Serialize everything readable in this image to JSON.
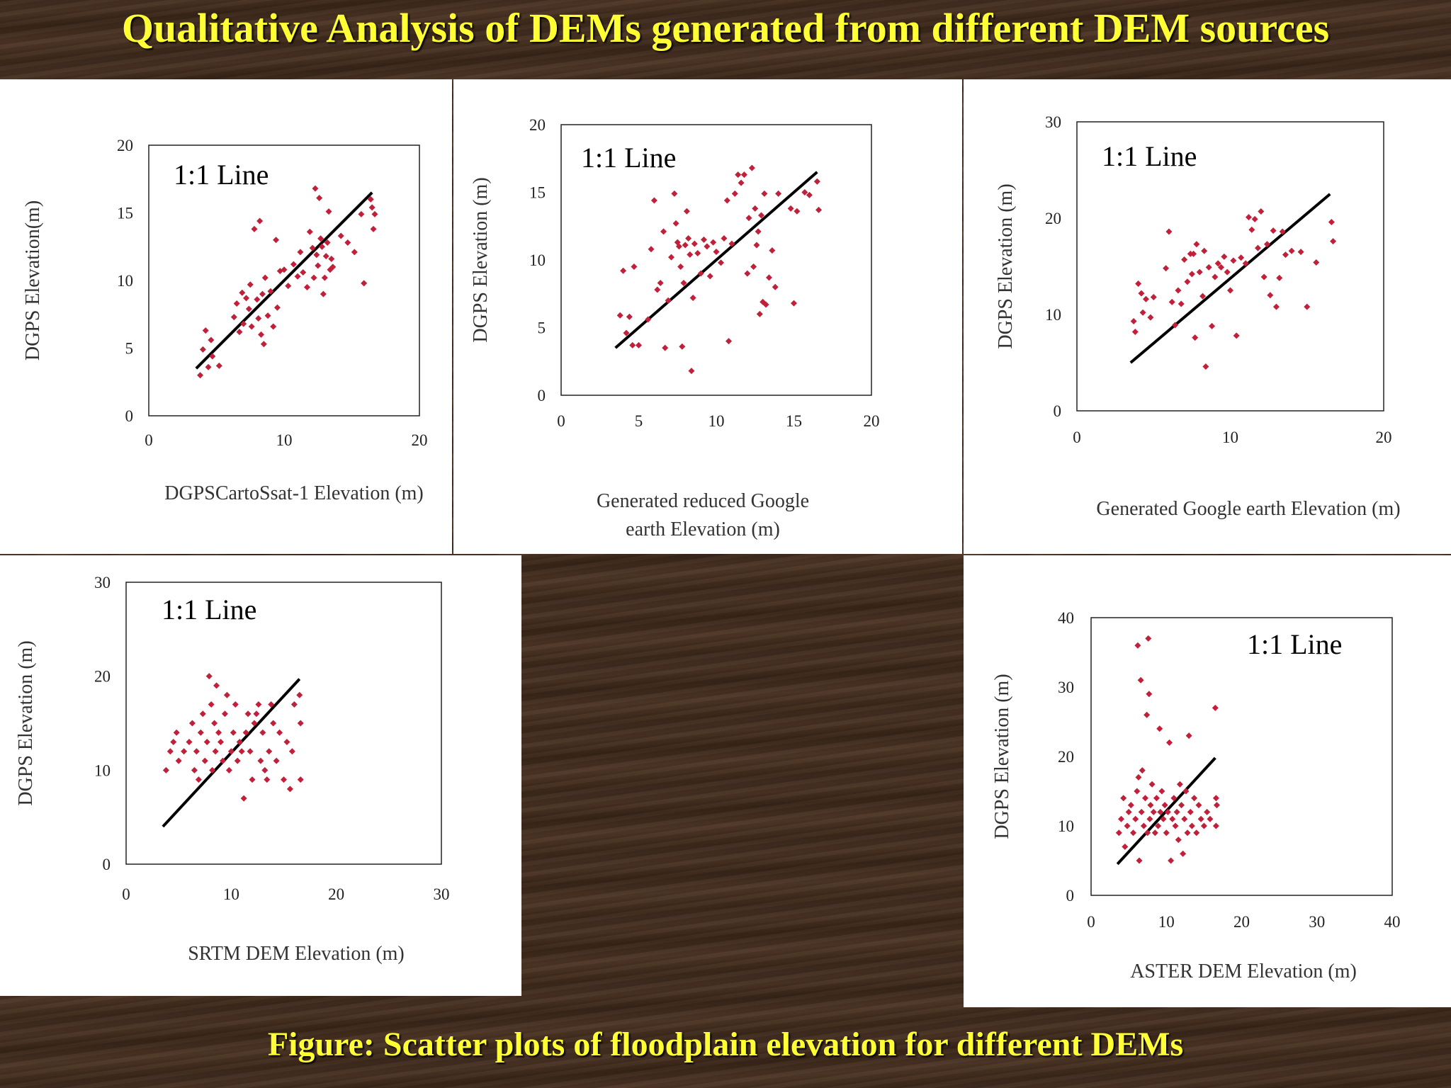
{
  "title": "Qualitative Analysis of DEMs generated from different DEM sources",
  "caption": "Figure: Scatter plots of floodplain elevation for different DEMs",
  "marker_color": "#c0203a",
  "chart_data": [
    {
      "id": "cartosat",
      "type": "scatter",
      "annotation": "1:1 Line",
      "xlabel": [
        "DGPSCartoSsat-1 Elevation (m)"
      ],
      "ylabel": "DGPS Elevation(m)",
      "xlim": [
        0,
        20
      ],
      "ylim": [
        0,
        20
      ],
      "xticks": [
        "0",
        "10",
        "20"
      ],
      "yticks": [
        "0",
        "5",
        "10",
        "15",
        "20"
      ],
      "one_to_one": [
        [
          3.5,
          3.5
        ],
        [
          16.5,
          16.5
        ]
      ],
      "points": [
        [
          3.8,
          3.0
        ],
        [
          4.0,
          4.9
        ],
        [
          4.2,
          6.3
        ],
        [
          4.4,
          3.6
        ],
        [
          4.7,
          4.4
        ],
        [
          5.2,
          3.7
        ],
        [
          4.6,
          5.6
        ],
        [
          6.3,
          7.3
        ],
        [
          6.5,
          8.3
        ],
        [
          6.7,
          6.2
        ],
        [
          6.9,
          9.1
        ],
        [
          7.0,
          6.8
        ],
        [
          7.2,
          8.7
        ],
        [
          7.4,
          7.9
        ],
        [
          7.5,
          9.7
        ],
        [
          7.6,
          6.6
        ],
        [
          7.8,
          13.8
        ],
        [
          8.0,
          8.6
        ],
        [
          8.1,
          7.2
        ],
        [
          8.2,
          14.4
        ],
        [
          8.3,
          6.0
        ],
        [
          8.4,
          9.0
        ],
        [
          8.5,
          5.3
        ],
        [
          8.6,
          10.2
        ],
        [
          8.8,
          7.4
        ],
        [
          9.0,
          9.2
        ],
        [
          9.2,
          6.6
        ],
        [
          9.4,
          13.0
        ],
        [
          9.5,
          8.0
        ],
        [
          9.7,
          10.7
        ],
        [
          10.0,
          10.8
        ],
        [
          10.3,
          9.6
        ],
        [
          10.7,
          11.2
        ],
        [
          11.0,
          10.3
        ],
        [
          11.2,
          12.1
        ],
        [
          11.4,
          10.6
        ],
        [
          11.7,
          9.5
        ],
        [
          11.9,
          13.6
        ],
        [
          12.1,
          12.4
        ],
        [
          12.2,
          10.2
        ],
        [
          12.3,
          16.8
        ],
        [
          12.4,
          11.9
        ],
        [
          12.5,
          11.1
        ],
        [
          12.6,
          16.1
        ],
        [
          12.7,
          13.1
        ],
        [
          12.8,
          12.5
        ],
        [
          12.9,
          9.0
        ],
        [
          13.0,
          10.2
        ],
        [
          13.1,
          11.8
        ],
        [
          13.2,
          12.8
        ],
        [
          13.3,
          15.1
        ],
        [
          13.4,
          10.8
        ],
        [
          13.5,
          11.6
        ],
        [
          13.6,
          11.0
        ],
        [
          14.2,
          13.3
        ],
        [
          14.7,
          12.8
        ],
        [
          15.2,
          12.1
        ],
        [
          15.7,
          14.9
        ],
        [
          15.9,
          9.8
        ],
        [
          16.4,
          16.0
        ],
        [
          16.5,
          15.4
        ],
        [
          16.6,
          13.8
        ],
        [
          16.7,
          14.9
        ]
      ]
    },
    {
      "id": "reduced-google",
      "type": "scatter",
      "annotation": "1:1 Line",
      "xlabel": [
        "Generated reduced Google",
        "earth Elevation (m)"
      ],
      "ylabel": "DGPS Elevation (m)",
      "xlim": [
        0,
        20
      ],
      "ylim": [
        0,
        20
      ],
      "xticks": [
        "0",
        "5",
        "10",
        "15",
        "20"
      ],
      "yticks": [
        "0",
        "5",
        "10",
        "15",
        "20"
      ],
      "one_to_one": [
        [
          3.5,
          3.5
        ],
        [
          16.5,
          16.5
        ]
      ],
      "points": [
        [
          3.8,
          5.9
        ],
        [
          4.0,
          9.2
        ],
        [
          4.2,
          4.6
        ],
        [
          4.4,
          5.8
        ],
        [
          4.6,
          3.7
        ],
        [
          4.7,
          9.5
        ],
        [
          5.0,
          3.7
        ],
        [
          5.6,
          5.6
        ],
        [
          5.8,
          10.8
        ],
        [
          6.0,
          14.4
        ],
        [
          6.2,
          7.8
        ],
        [
          6.4,
          8.3
        ],
        [
          6.6,
          12.1
        ],
        [
          6.7,
          3.5
        ],
        [
          6.9,
          7.0
        ],
        [
          7.1,
          10.2
        ],
        [
          7.3,
          14.9
        ],
        [
          7.4,
          12.7
        ],
        [
          7.5,
          11.3
        ],
        [
          7.6,
          11.0
        ],
        [
          7.7,
          9.5
        ],
        [
          7.8,
          3.6
        ],
        [
          7.9,
          8.3
        ],
        [
          8.0,
          11.1
        ],
        [
          8.1,
          13.6
        ],
        [
          8.2,
          11.6
        ],
        [
          8.3,
          10.4
        ],
        [
          8.4,
          1.8
        ],
        [
          8.5,
          7.2
        ],
        [
          8.6,
          11.2
        ],
        [
          8.8,
          10.5
        ],
        [
          9.0,
          9.0
        ],
        [
          9.2,
          11.5
        ],
        [
          9.4,
          11.0
        ],
        [
          9.6,
          8.8
        ],
        [
          9.8,
          11.3
        ],
        [
          10.0,
          10.6
        ],
        [
          10.3,
          9.8
        ],
        [
          10.5,
          11.6
        ],
        [
          10.7,
          14.4
        ],
        [
          10.8,
          4.0
        ],
        [
          11.0,
          11.2
        ],
        [
          11.2,
          14.9
        ],
        [
          11.4,
          16.3
        ],
        [
          11.6,
          15.7
        ],
        [
          11.8,
          16.3
        ],
        [
          12.0,
          9.0
        ],
        [
          12.1,
          13.1
        ],
        [
          12.3,
          16.8
        ],
        [
          12.4,
          9.5
        ],
        [
          12.5,
          13.8
        ],
        [
          12.6,
          11.1
        ],
        [
          12.7,
          12.1
        ],
        [
          12.8,
          6.0
        ],
        [
          12.9,
          13.3
        ],
        [
          13.0,
          6.9
        ],
        [
          13.1,
          14.9
        ],
        [
          13.2,
          6.7
        ],
        [
          13.4,
          8.7
        ],
        [
          13.6,
          10.7
        ],
        [
          13.8,
          8.0
        ],
        [
          14.0,
          14.9
        ],
        [
          14.8,
          13.8
        ],
        [
          15.0,
          6.8
        ],
        [
          15.2,
          13.6
        ],
        [
          15.7,
          15.0
        ],
        [
          16.0,
          14.8
        ],
        [
          16.5,
          15.8
        ],
        [
          16.6,
          13.7
        ]
      ]
    },
    {
      "id": "google",
      "type": "scatter",
      "annotation": "1:1 Line",
      "xlabel": [
        "Generated Google earth Elevation (m)"
      ],
      "ylabel": "DGPS Elevation (m)",
      "xlim": [
        0,
        20
      ],
      "ylim": [
        0,
        30
      ],
      "xticks": [
        "0",
        "10",
        "20"
      ],
      "yticks": [
        "0",
        "10",
        "20",
        "30"
      ],
      "one_to_one": [
        [
          3.5,
          5.0
        ],
        [
          16.5,
          22.5
        ]
      ],
      "points": [
        [
          3.7,
          9.3
        ],
        [
          3.8,
          8.2
        ],
        [
          4.0,
          13.2
        ],
        [
          4.2,
          12.2
        ],
        [
          4.3,
          10.2
        ],
        [
          4.5,
          11.6
        ],
        [
          4.8,
          9.7
        ],
        [
          5.0,
          11.8
        ],
        [
          5.8,
          14.8
        ],
        [
          6.0,
          18.6
        ],
        [
          6.2,
          11.3
        ],
        [
          6.4,
          8.9
        ],
        [
          6.6,
          12.5
        ],
        [
          6.8,
          11.1
        ],
        [
          7.0,
          15.7
        ],
        [
          7.2,
          13.4
        ],
        [
          7.4,
          16.3
        ],
        [
          7.5,
          14.2
        ],
        [
          7.6,
          16.3
        ],
        [
          7.7,
          7.6
        ],
        [
          7.8,
          17.3
        ],
        [
          8.0,
          14.4
        ],
        [
          8.2,
          11.9
        ],
        [
          8.3,
          16.6
        ],
        [
          8.4,
          4.6
        ],
        [
          8.6,
          14.9
        ],
        [
          8.8,
          8.8
        ],
        [
          9.0,
          13.9
        ],
        [
          9.2,
          15.3
        ],
        [
          9.4,
          14.9
        ],
        [
          9.6,
          16.0
        ],
        [
          9.8,
          14.4
        ],
        [
          10.0,
          12.5
        ],
        [
          10.2,
          15.6
        ],
        [
          10.4,
          7.8
        ],
        [
          10.7,
          15.9
        ],
        [
          11.0,
          15.3
        ],
        [
          11.2,
          20.1
        ],
        [
          11.4,
          18.8
        ],
        [
          11.6,
          19.9
        ],
        [
          11.8,
          16.9
        ],
        [
          12.0,
          20.7
        ],
        [
          12.2,
          13.9
        ],
        [
          12.4,
          17.3
        ],
        [
          12.6,
          12.0
        ],
        [
          12.8,
          18.7
        ],
        [
          13.0,
          10.8
        ],
        [
          13.2,
          13.8
        ],
        [
          13.4,
          18.6
        ],
        [
          13.6,
          16.2
        ],
        [
          14.0,
          16.6
        ],
        [
          14.6,
          16.5
        ],
        [
          15.0,
          10.8
        ],
        [
          15.6,
          15.4
        ],
        [
          16.6,
          19.6
        ],
        [
          16.7,
          17.6
        ]
      ]
    },
    {
      "id": "srtm",
      "type": "scatter",
      "annotation": "1:1 Line",
      "xlabel": [
        "SRTM DEM Elevation (m)"
      ],
      "ylabel": "DGPS Elevation (m)",
      "xlim": [
        0,
        30
      ],
      "ylim": [
        0,
        30
      ],
      "xticks": [
        "0",
        "10",
        "20",
        "30"
      ],
      "yticks": [
        "0",
        "10",
        "20",
        "30"
      ],
      "one_to_one": [
        [
          3.5,
          4.0
        ],
        [
          16.5,
          19.7
        ]
      ],
      "points": [
        [
          3.8,
          10.0
        ],
        [
          4.2,
          12.0
        ],
        [
          4.5,
          13.0
        ],
        [
          4.8,
          14.0
        ],
        [
          5.0,
          11.0
        ],
        [
          5.5,
          12.0
        ],
        [
          6.0,
          13.0
        ],
        [
          6.3,
          15.0
        ],
        [
          6.5,
          10.0
        ],
        [
          6.7,
          12.0
        ],
        [
          6.9,
          9.0
        ],
        [
          7.1,
          14.0
        ],
        [
          7.3,
          16.0
        ],
        [
          7.5,
          11.0
        ],
        [
          7.7,
          13.0
        ],
        [
          7.9,
          20.0
        ],
        [
          8.1,
          17.0
        ],
        [
          8.2,
          10.0
        ],
        [
          8.4,
          15.0
        ],
        [
          8.5,
          12.0
        ],
        [
          8.6,
          19.0
        ],
        [
          8.8,
          14.0
        ],
        [
          9.0,
          13.0
        ],
        [
          9.2,
          11.0
        ],
        [
          9.4,
          16.0
        ],
        [
          9.6,
          18.0
        ],
        [
          9.8,
          10.0
        ],
        [
          10.0,
          12.0
        ],
        [
          10.2,
          14.0
        ],
        [
          10.4,
          17.0
        ],
        [
          10.6,
          11.0
        ],
        [
          10.8,
          13.0
        ],
        [
          11.0,
          12.0
        ],
        [
          11.2,
          7.0
        ],
        [
          11.4,
          14.0
        ],
        [
          11.6,
          16.0
        ],
        [
          11.8,
          12.0
        ],
        [
          12.0,
          9.0
        ],
        [
          12.2,
          15.0
        ],
        [
          12.4,
          16.0
        ],
        [
          12.6,
          17.0
        ],
        [
          12.8,
          11.0
        ],
        [
          13.0,
          14.0
        ],
        [
          13.2,
          10.0
        ],
        [
          13.4,
          9.0
        ],
        [
          13.6,
          12.0
        ],
        [
          13.8,
          17.0
        ],
        [
          14.0,
          15.0
        ],
        [
          14.3,
          11.0
        ],
        [
          14.6,
          14.0
        ],
        [
          15.0,
          9.0
        ],
        [
          15.3,
          13.0
        ],
        [
          15.6,
          8.0
        ],
        [
          15.8,
          12.0
        ],
        [
          16.0,
          17.0
        ],
        [
          16.5,
          18.0
        ],
        [
          16.6,
          15.0
        ],
        [
          16.6,
          9.0
        ]
      ]
    },
    {
      "id": "aster",
      "type": "scatter",
      "annotation": "1:1 Line",
      "xlabel": [
        "ASTER DEM Elevation (m)"
      ],
      "ylabel": "DGPS Elevation (m)",
      "xlim": [
        0,
        40
      ],
      "ylim": [
        0,
        40
      ],
      "xticks": [
        "0",
        "10",
        "20",
        "30",
        "40"
      ],
      "yticks": [
        "0",
        "10",
        "20",
        "30",
        "40"
      ],
      "one_to_one": [
        [
          3.5,
          4.5
        ],
        [
          16.5,
          19.8
        ]
      ],
      "points": [
        [
          3.7,
          9.0
        ],
        [
          4.0,
          11.0
        ],
        [
          4.3,
          14.0
        ],
        [
          4.5,
          7.0
        ],
        [
          4.8,
          10.0
        ],
        [
          5.0,
          12.0
        ],
        [
          5.3,
          13.0
        ],
        [
          5.6,
          9.0
        ],
        [
          5.9,
          11.0
        ],
        [
          6.1,
          15.0
        ],
        [
          6.2,
          36.0
        ],
        [
          6.3,
          17.0
        ],
        [
          6.4,
          5.0
        ],
        [
          6.6,
          31.0
        ],
        [
          6.7,
          12.0
        ],
        [
          6.8,
          18.0
        ],
        [
          7.0,
          10.0
        ],
        [
          7.2,
          14.0
        ],
        [
          7.4,
          26.0
        ],
        [
          7.5,
          9.0
        ],
        [
          7.6,
          37.0
        ],
        [
          7.7,
          29.0
        ],
        [
          7.8,
          11.0
        ],
        [
          7.9,
          13.0
        ],
        [
          8.1,
          16.0
        ],
        [
          8.3,
          12.0
        ],
        [
          8.5,
          9.0
        ],
        [
          8.7,
          14.0
        ],
        [
          8.9,
          10.0
        ],
        [
          9.1,
          24.0
        ],
        [
          9.2,
          12.0
        ],
        [
          9.4,
          15.0
        ],
        [
          9.6,
          11.0
        ],
        [
          9.8,
          13.0
        ],
        [
          10.0,
          9.0
        ],
        [
          10.2,
          12.0
        ],
        [
          10.4,
          22.0
        ],
        [
          10.6,
          5.0
        ],
        [
          10.8,
          11.0
        ],
        [
          11.0,
          14.0
        ],
        [
          11.2,
          10.0
        ],
        [
          11.4,
          12.0
        ],
        [
          11.6,
          8.0
        ],
        [
          11.8,
          16.0
        ],
        [
          12.0,
          13.0
        ],
        [
          12.2,
          6.0
        ],
        [
          12.4,
          11.0
        ],
        [
          12.6,
          15.0
        ],
        [
          12.8,
          9.0
        ],
        [
          13.0,
          23.0
        ],
        [
          13.2,
          12.0
        ],
        [
          13.4,
          10.0
        ],
        [
          13.7,
          14.0
        ],
        [
          14.0,
          9.0
        ],
        [
          14.3,
          13.0
        ],
        [
          14.6,
          11.0
        ],
        [
          15.0,
          10.0
        ],
        [
          15.4,
          12.0
        ],
        [
          15.8,
          11.0
        ],
        [
          16.5,
          27.0
        ],
        [
          16.6,
          14.0
        ],
        [
          16.6,
          10.0
        ],
        [
          16.7,
          13.0
        ]
      ]
    }
  ]
}
